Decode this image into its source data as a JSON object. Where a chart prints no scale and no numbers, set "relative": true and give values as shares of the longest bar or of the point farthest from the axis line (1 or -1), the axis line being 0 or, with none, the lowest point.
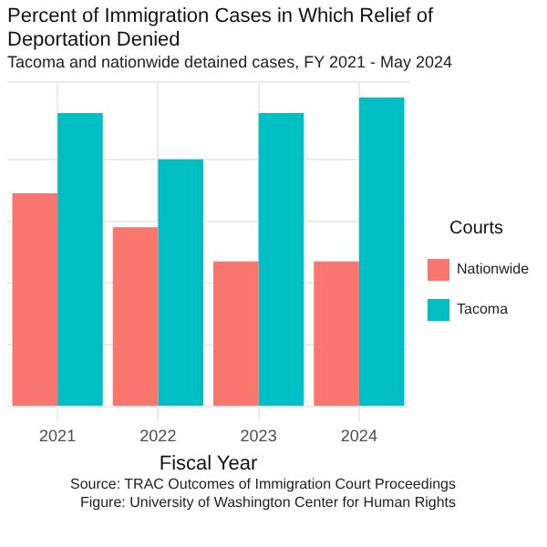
{
  "chart_data": {
    "type": "bar",
    "title": "Percent of Immigration Cases in Which Relief of Deportation Denied",
    "subtitle": "Tacoma and nationwide detained cases, FY 2021 - May 2024",
    "xlabel": "Fiscal Year",
    "legend_title": "Courts",
    "categories": [
      "2021",
      "2022",
      "2023",
      "2024"
    ],
    "relative": true,
    "grid": true,
    "legend": "right",
    "series": [
      {
        "name": "Nationwide",
        "color": "#f8766d",
        "values": [
          0.69,
          0.58,
          0.47,
          0.47
        ]
      },
      {
        "name": "Tacoma",
        "color": "#00bfc4",
        "values": [
          0.95,
          0.8,
          0.95,
          1
        ]
      }
    ],
    "annotations": [
      "Source: TRAC Outcomes of Immigration Court Proceedings",
      "Figure: University of Washington Center for Human Rights"
    ]
  }
}
